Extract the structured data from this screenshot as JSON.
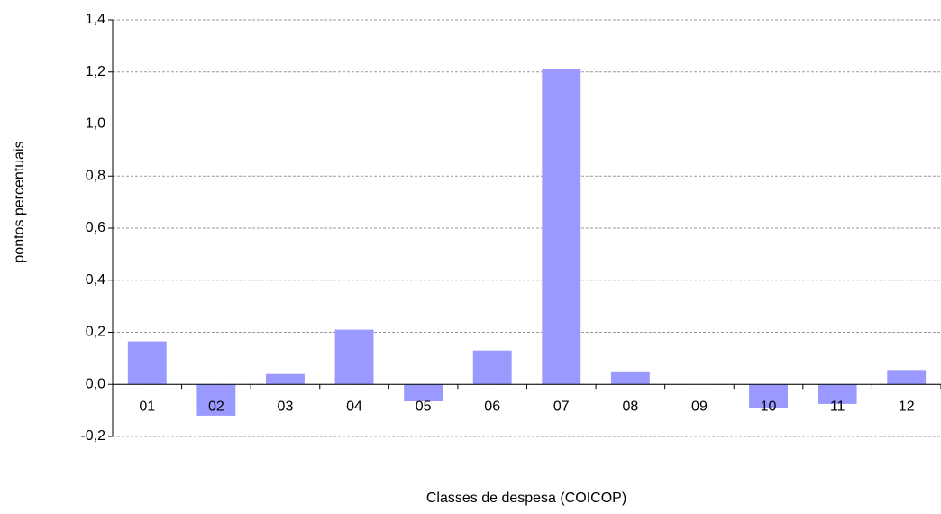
{
  "chart_data": {
    "type": "bar",
    "x_label": "Classes de despesa (COICOP)",
    "y_label": "pontos percentuais",
    "categories": [
      "01",
      "02",
      "03",
      "04",
      "05",
      "06",
      "07",
      "08",
      "09",
      "10",
      "11",
      "12"
    ],
    "values": [
      0.165,
      -0.12,
      0.04,
      0.21,
      -0.065,
      0.13,
      1.21,
      0.05,
      0.0,
      -0.09,
      -0.075,
      0.055
    ],
    "color": "#9999ff",
    "ylim": [
      -0.2,
      1.4
    ],
    "yticks": [
      {
        "value": -0.2,
        "label": "-0,2"
      },
      {
        "value": 0,
        "label": "0,0"
      },
      {
        "value": 0.2,
        "label": "0,2"
      },
      {
        "value": 0.4,
        "label": "0,4"
      },
      {
        "value": 0.6,
        "label": "0,6"
      },
      {
        "value": 0.8,
        "label": "0,8"
      },
      {
        "value": 1.0,
        "label": "1,0"
      },
      {
        "value": 1.2,
        "label": "1,2"
      },
      {
        "value": 1.4,
        "label": "1,4"
      }
    ],
    "grid": true
  }
}
